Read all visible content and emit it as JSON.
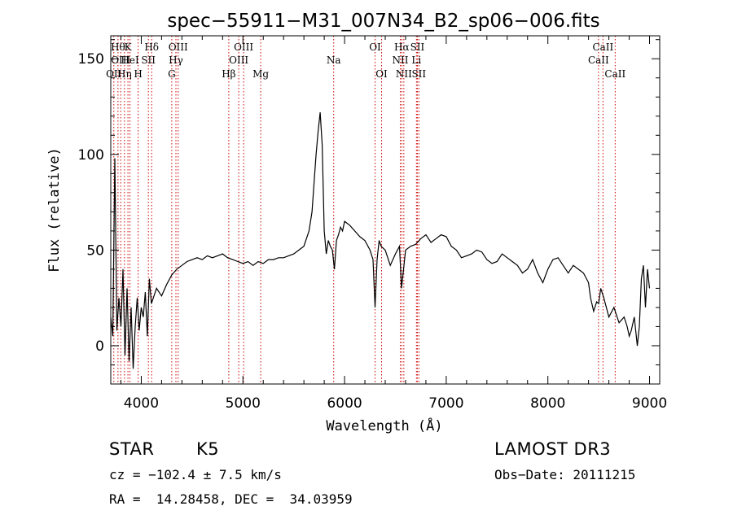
{
  "chart_data": {
    "type": "line",
    "title": "spec−55911−M31_007N34_B2_sp06−006.fits",
    "xlabel": "Wavelength (Å)",
    "ylabel": "Flux (relative)",
    "xlim": [
      3700,
      9100
    ],
    "ylim": [
      -20,
      162
    ],
    "xticks": [
      4000,
      5000,
      6000,
      7000,
      8000,
      9000
    ],
    "xtick_labels": [
      "4000",
      "5000",
      "6000",
      "7000",
      "8000",
      "9000"
    ],
    "yticks": [
      0,
      50,
      100,
      150
    ],
    "ytick_labels": [
      "0",
      "50",
      "100",
      "150"
    ],
    "series": [
      {
        "name": "spectrum",
        "x": [
          3700,
          3720,
          3740,
          3760,
          3780,
          3800,
          3820,
          3840,
          3860,
          3880,
          3900,
          3920,
          3940,
          3960,
          3980,
          4000,
          4020,
          4040,
          4060,
          4080,
          4100,
          4150,
          4200,
          4250,
          4300,
          4350,
          4400,
          4450,
          4500,
          4550,
          4600,
          4650,
          4700,
          4750,
          4800,
          4850,
          4900,
          4950,
          5000,
          5050,
          5100,
          5150,
          5200,
          5250,
          5300,
          5350,
          5400,
          5450,
          5500,
          5550,
          5600,
          5650,
          5680,
          5700,
          5720,
          5740,
          5760,
          5780,
          5800,
          5820,
          5840,
          5860,
          5880,
          5900,
          5920,
          5940,
          5960,
          5980,
          6000,
          6050,
          6100,
          6150,
          6200,
          6250,
          6280,
          6300,
          6320,
          6340,
          6360,
          6400,
          6450,
          6500,
          6540,
          6560,
          6580,
          6600,
          6650,
          6700,
          6750,
          6800,
          6850,
          6900,
          6950,
          7000,
          7050,
          7100,
          7150,
          7200,
          7250,
          7300,
          7350,
          7400,
          7450,
          7500,
          7550,
          7600,
          7650,
          7700,
          7750,
          7800,
          7850,
          7900,
          7950,
          8000,
          8050,
          8100,
          8150,
          8200,
          8250,
          8300,
          8350,
          8400,
          8420,
          8450,
          8480,
          8500,
          8520,
          8550,
          8600,
          8650,
          8700,
          8750,
          8780,
          8800,
          8820,
          8850,
          8880,
          8900,
          8920,
          8940,
          8960,
          8980,
          9000
        ],
        "values": [
          15,
          5,
          98,
          8,
          25,
          10,
          40,
          -5,
          30,
          -8,
          20,
          -12,
          10,
          25,
          8,
          20,
          15,
          28,
          5,
          35,
          22,
          30,
          26,
          32,
          37,
          40,
          42,
          44,
          45,
          46,
          45,
          47,
          46,
          47,
          48,
          46,
          45,
          44,
          43,
          44,
          42,
          44,
          43,
          45,
          45,
          46,
          46,
          47,
          48,
          50,
          52,
          60,
          70,
          85,
          100,
          112,
          122,
          105,
          60,
          48,
          55,
          52,
          50,
          40,
          55,
          58,
          62,
          60,
          65,
          63,
          60,
          57,
          55,
          50,
          45,
          20,
          45,
          55,
          52,
          50,
          42,
          48,
          52,
          30,
          40,
          50,
          52,
          53,
          56,
          58,
          54,
          56,
          58,
          57,
          52,
          50,
          46,
          47,
          48,
          50,
          49,
          45,
          43,
          44,
          48,
          46,
          44,
          42,
          38,
          40,
          45,
          38,
          33,
          40,
          45,
          46,
          42,
          38,
          42,
          40,
          38,
          33,
          25,
          18,
          23,
          22,
          30,
          25,
          15,
          20,
          12,
          15,
          10,
          5,
          8,
          15,
          0,
          10,
          35,
          42,
          20,
          40,
          30
        ]
      }
    ],
    "spectral_lines": [
      {
        "wavelength": 3730,
        "label": "OII",
        "row": 3
      },
      {
        "wavelength": 3771,
        "label": "Hθ",
        "row": 1
      },
      {
        "wavelength": 3798,
        "label": "OIII",
        "row": 2
      },
      {
        "wavelength": 3835,
        "label": "Hη",
        "row": 3
      },
      {
        "wavelength": 3869,
        "label": "K",
        "row": 1
      },
      {
        "wavelength": 3889,
        "label": "HeI",
        "row": 2
      },
      {
        "wavelength": 3969,
        "label": "H",
        "row": 3
      },
      {
        "wavelength": 4070,
        "label": "SII",
        "row": 2
      },
      {
        "wavelength": 4102,
        "label": "Hδ",
        "row": 1
      },
      {
        "wavelength": 4300,
        "label": "G",
        "row": 3
      },
      {
        "wavelength": 4341,
        "label": "Hγ",
        "row": 2
      },
      {
        "wavelength": 4363,
        "label": "OIII",
        "row": 1
      },
      {
        "wavelength": 4861,
        "label": "Hβ",
        "row": 3
      },
      {
        "wavelength": 4959,
        "label": "OIII",
        "row": 2
      },
      {
        "wavelength": 5007,
        "label": "OIII",
        "row": 1
      },
      {
        "wavelength": 5175,
        "label": "Mg",
        "row": 3
      },
      {
        "wavelength": 5893,
        "label": "Na",
        "row": 2
      },
      {
        "wavelength": 6300,
        "label": "OI",
        "row": 1
      },
      {
        "wavelength": 6364,
        "label": "OI",
        "row": 3
      },
      {
        "wavelength": 6548,
        "label": "NII",
        "row": 2
      },
      {
        "wavelength": 6563,
        "label": "Hα",
        "row": 1
      },
      {
        "wavelength": 6583,
        "label": "NII",
        "row": 3
      },
      {
        "wavelength": 6707,
        "label": "Li",
        "row": 2
      },
      {
        "wavelength": 6716,
        "label": "SII",
        "row": 1
      },
      {
        "wavelength": 6731,
        "label": "SII",
        "row": 3
      },
      {
        "wavelength": 8498,
        "label": "CaII",
        "row": 2
      },
      {
        "wavelength": 8542,
        "label": "CaII",
        "row": 1
      },
      {
        "wavelength": 8662,
        "label": "CaII",
        "row": 3
      }
    ]
  },
  "info": {
    "object_class": "STAR",
    "subclass": "K5",
    "survey": "LAMOST DR3",
    "redshift_line": "cz = −102.4 ± 7.5 km/s",
    "obs_date_line": "Obs−Date: 20111215",
    "coords_line": "RA =  14.28458, DEC =  34.03959"
  },
  "colors": {
    "spectrum": "#000000",
    "line_marker": "#cc0000"
  }
}
